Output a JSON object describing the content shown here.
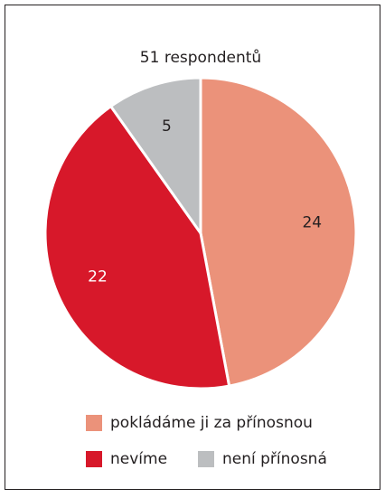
{
  "chart_data": {
    "type": "pie",
    "title": "51 respondentů",
    "categories": [
      "pokládáme ji za přínosnou",
      "nevíme",
      "není přínosná"
    ],
    "values": [
      24,
      22,
      5
    ],
    "colors": [
      "#eb927a",
      "#d7182a",
      "#bcbec0"
    ]
  }
}
